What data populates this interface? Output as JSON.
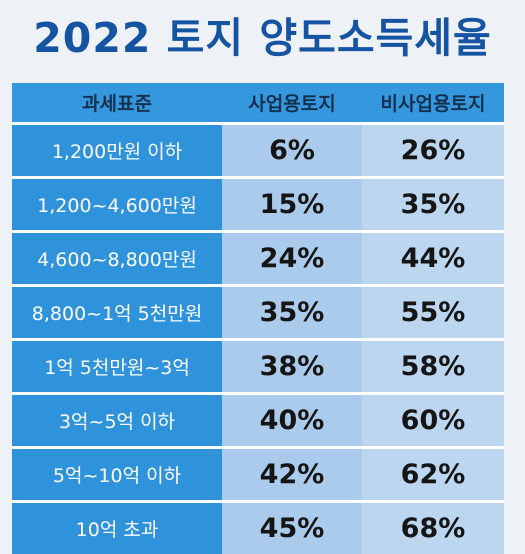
{
  "title": "2022 토지 양도소득세율",
  "headers": [
    "과세표준",
    "사업용토지",
    "비사업용토지"
  ],
  "rows": [
    {
      "bracket": "1,200만원 이하",
      "business": "6%",
      "non_business": "26%"
    },
    {
      "bracket": "1,200~4,600만원",
      "business": "15%",
      "non_business": "35%"
    },
    {
      "bracket": "4,600~8,800만원",
      "business": "24%",
      "non_business": "44%"
    },
    {
      "bracket": "8,800~1억 5천만원",
      "business": "35%",
      "non_business": "55%"
    },
    {
      "bracket": "1억 5천만원~3억",
      "business": "38%",
      "non_business": "58%"
    },
    {
      "bracket": "3억~5억 이하",
      "business": "40%",
      "non_business": "60%"
    },
    {
      "bracket": "5억~10억 이하",
      "business": "42%",
      "non_business": "62%"
    },
    {
      "bracket": "10억 초과",
      "business": "45%",
      "non_business": "68%"
    }
  ],
  "colors": {
    "title": "#1553a3",
    "header_bg": "#3597dd",
    "bracket_bg": "#2f93dc",
    "business_bg": "#aacbeb",
    "non_business_bg": "#bcd6ef"
  }
}
